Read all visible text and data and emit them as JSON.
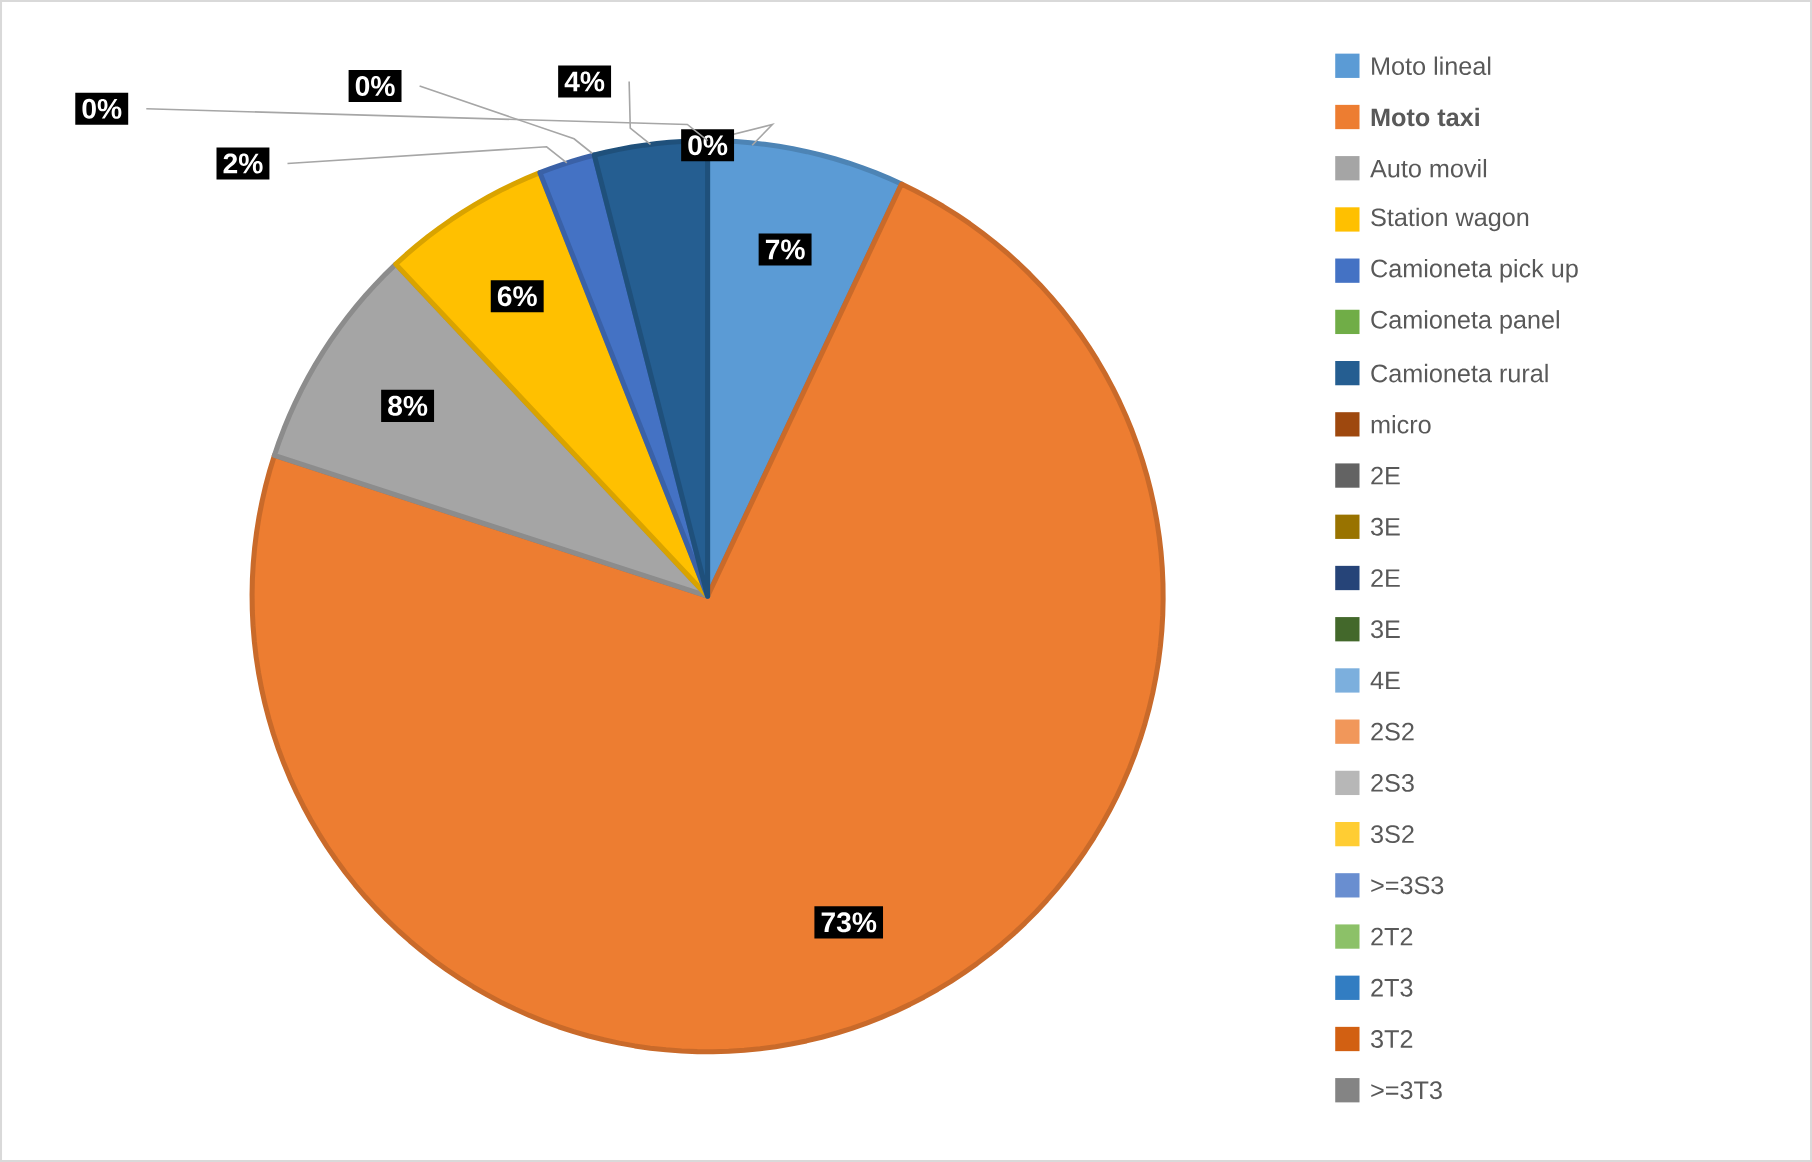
{
  "chart_data": {
    "type": "pie",
    "legend": "right",
    "categories": [
      "Moto lineal",
      "**Moto taxi**",
      "Auto movil",
      "Station wagon",
      "Camioneta pick up",
      "Camioneta panel",
      "Camioneta rural",
      "micro",
      "2E",
      "3E",
      "2E",
      "3E",
      "4E",
      "2S2",
      "2S3",
      "3S2",
      ">=3S3",
      "2T2",
      "2T3",
      "3T2",
      ">=3T3"
    ],
    "values": [
      7,
      73,
      8,
      6,
      2,
      0,
      4,
      0,
      0,
      0,
      0,
      0,
      0,
      0,
      0,
      0,
      0,
      0,
      0,
      0,
      0
    ],
    "value_labels": [
      "7%",
      "73%",
      "8%",
      "6%",
      "2%",
      "0%",
      "4%",
      "0%",
      "0%",
      null,
      null,
      null,
      null,
      null,
      null,
      null,
      null,
      null,
      null,
      null,
      null
    ],
    "colors": [
      "#5b9bd5",
      "#ed7d31",
      "#a5a5a5",
      "#ffc000",
      "#4472c4",
      "#70ad47",
      "#255e91",
      "#9e480e",
      "#636363",
      "#997300",
      "#264478",
      "#43682b",
      "#7cafdd",
      "#f1975a",
      "#b7b7b7",
      "#ffcd33",
      "#698ed0",
      "#8cc168",
      "#327dc2",
      "#d26012",
      "#848484"
    ]
  }
}
